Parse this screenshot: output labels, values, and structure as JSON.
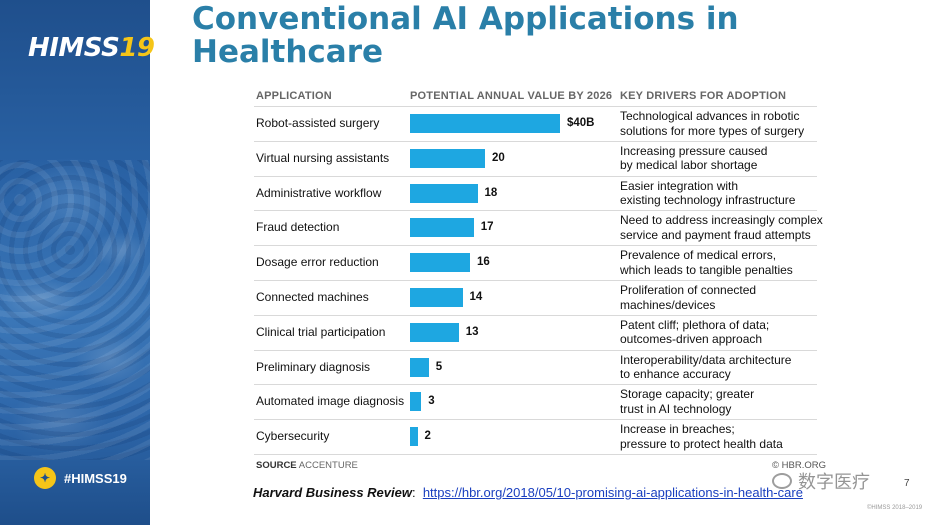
{
  "slide": {
    "title": "Conventional AI Applications in Healthcare",
    "page_number": "7",
    "copyright": "©HIMSS 2018–2019"
  },
  "branding": {
    "logo_main": "HIMSS",
    "logo_year": "19",
    "hashtag": "#HIMSS19",
    "hashtag_icon": "twitter-bird-icon",
    "watermark": "数字医疗"
  },
  "citation": {
    "source_name": "Harvard Business Review",
    "separator": ":",
    "url": "https://hbr.org/2018/05/10-promising-ai-applications-in-health-care"
  },
  "chart_data": {
    "type": "bar",
    "orientation": "horizontal",
    "columns": {
      "application": "APPLICATION",
      "value": "POTENTIAL ANNUAL VALUE BY 2026",
      "drivers": "KEY DRIVERS FOR ADOPTION"
    },
    "categories": [
      "Robot-assisted surgery",
      "Virtual nursing assistants",
      "Administrative workflow",
      "Fraud detection",
      "Dosage error reduction",
      "Connected machines",
      "Clinical trial participation",
      "Preliminary diagnosis",
      "Automated image diagnosis",
      "Cybersecurity"
    ],
    "values": [
      40,
      20,
      18,
      17,
      16,
      14,
      13,
      5,
      3,
      2
    ],
    "value_labels": [
      "$40B",
      "20",
      "18",
      "17",
      "16",
      "14",
      "13",
      "5",
      "3",
      "2"
    ],
    "drivers": [
      [
        "Technological advances in robotic",
        "solutions for more types of surgery"
      ],
      [
        "Increasing pressure caused",
        "by medical labor shortage"
      ],
      [
        "Easier integration with",
        "existing technology infrastructure"
      ],
      [
        "Need to address increasingly complex",
        "service and payment fraud attempts"
      ],
      [
        "Prevalence of medical errors,",
        "which leads to tangible penalties"
      ],
      [
        "Proliferation of connected",
        "machines/devices"
      ],
      [
        "Patent cliff; plethora of data;",
        "outcomes-driven approach"
      ],
      [
        "Interoperability/data architecture",
        "to enhance accuracy"
      ],
      [
        "Storage capacity; greater",
        "trust in AI technology"
      ],
      [
        "Increase in breaches;",
        "pressure to protect health data"
      ]
    ],
    "xlim": [
      0,
      40
    ],
    "bar_color": "#1ea7e1",
    "source_label": "SOURCE",
    "source_value": "ACCENTURE",
    "publisher_mark": "© HBR.ORG"
  }
}
